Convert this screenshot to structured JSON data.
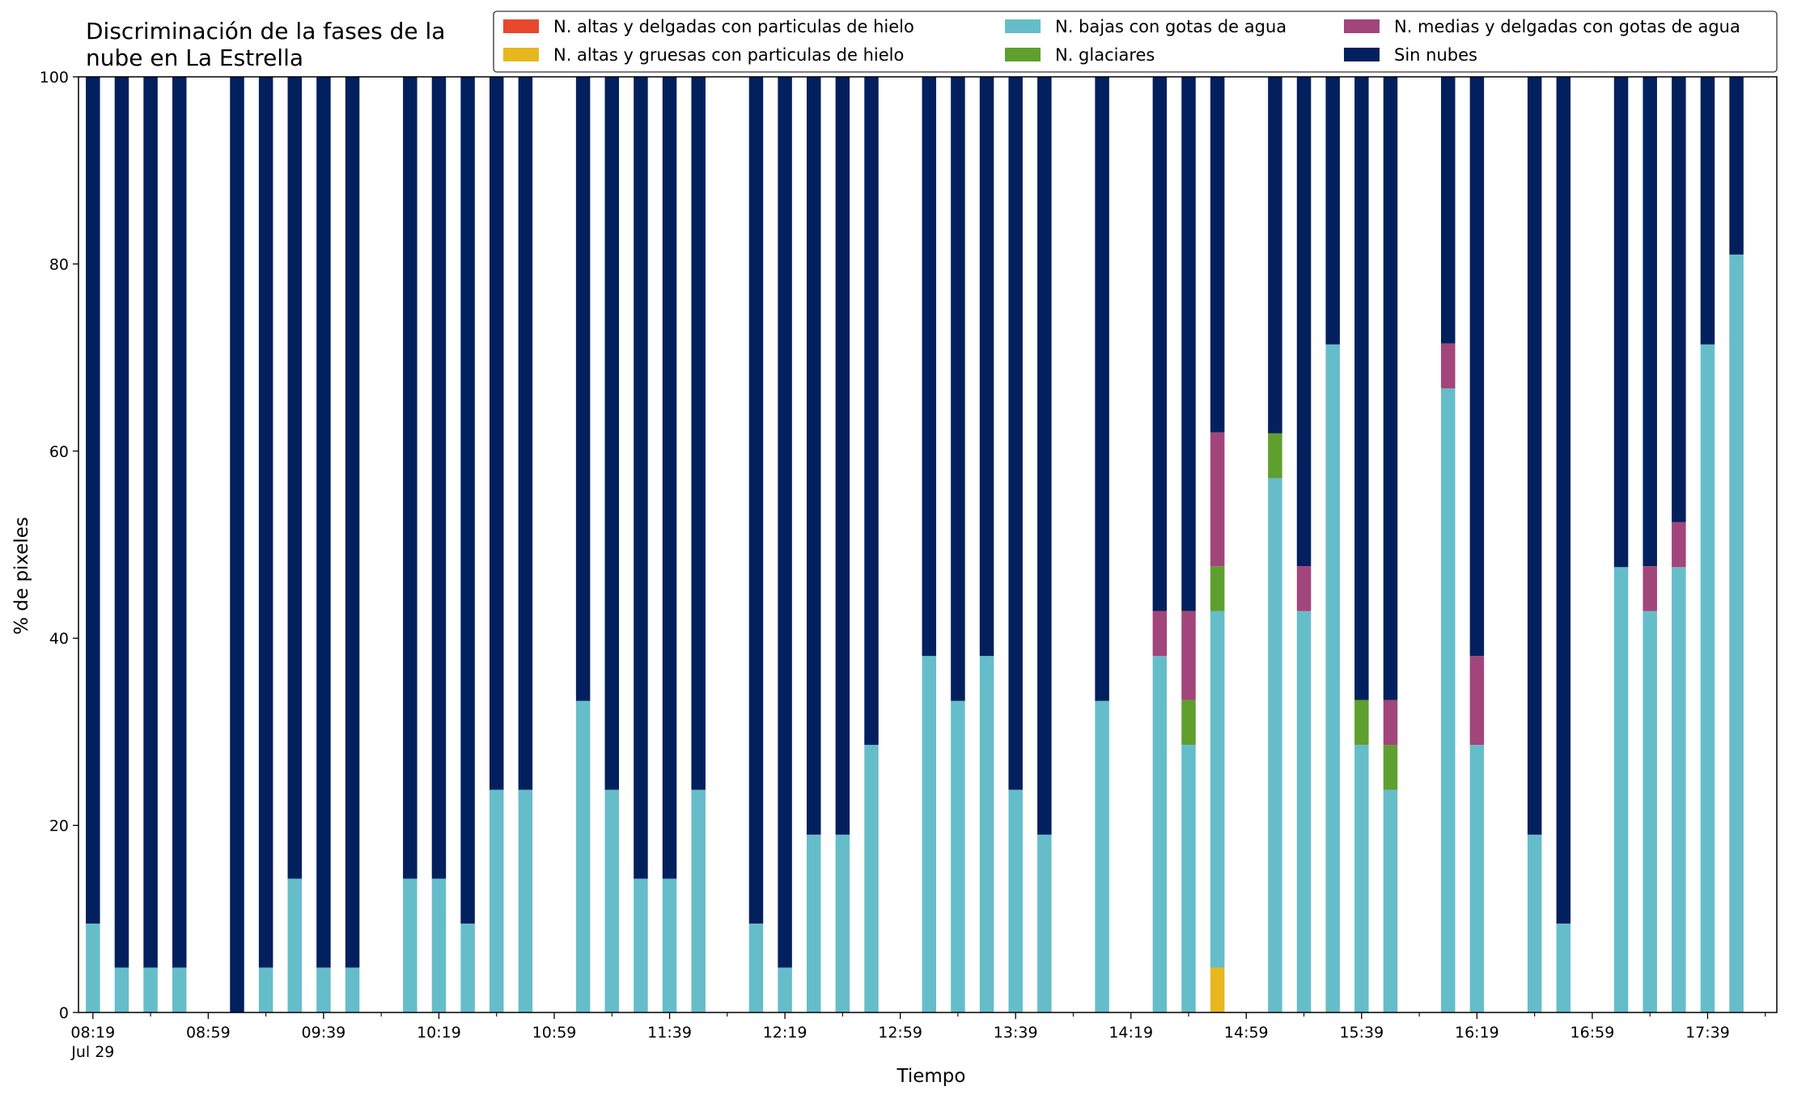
{
  "chart_data": {
    "type": "bar",
    "stacked": true,
    "title": "Discriminación de la fases de la\nnube en La Estrella",
    "xlabel": "Tiempo",
    "ylabel": "% de pixeles",
    "ylim": [
      0,
      100
    ],
    "yticks": [
      0,
      20,
      40,
      60,
      80,
      100
    ],
    "xlim_minutes_from_first_tick": [
      -5,
      584
    ],
    "x_tick_labels": [
      "08:19",
      "08:59",
      "09:39",
      "10:19",
      "10:59",
      "11:39",
      "12:19",
      "12:59",
      "13:39",
      "14:19",
      "14:59",
      "15:39",
      "16:19",
      "16:59",
      "17:39"
    ],
    "x_tick_sublabel": "Jul 29",
    "grid": false,
    "legend_position": "top-right",
    "series": [
      {
        "name": "N. altas y delgadas con particulas de hielo",
        "color": "#e8482c"
      },
      {
        "name": "N. altas y gruesas con particulas de hielo",
        "color": "#e6b81e"
      },
      {
        "name": "N. bajas con gotas de agua",
        "color": "#66bdca"
      },
      {
        "name": "N. glaciares",
        "color": "#5f9f2e"
      },
      {
        "name": "N. medias y delgadas con gotas de agua",
        "color": "#a2457a"
      },
      {
        "name": "Sin nubes",
        "color": "#03205e"
      }
    ],
    "bars": [
      {
        "t": "08:19",
        "v": [
          0,
          0,
          9.5,
          0,
          0,
          90.5
        ]
      },
      {
        "t": "08:29",
        "v": [
          0,
          0,
          4.8,
          0,
          0,
          95.2
        ]
      },
      {
        "t": "08:39",
        "v": [
          0,
          0,
          4.8,
          0,
          0,
          95.2
        ]
      },
      {
        "t": "08:49",
        "v": [
          0,
          0,
          4.8,
          0,
          0,
          95.2
        ]
      },
      {
        "t": "09:09",
        "v": [
          0,
          0,
          0,
          0,
          0,
          100
        ]
      },
      {
        "t": "09:19",
        "v": [
          0,
          0,
          4.8,
          0,
          0,
          95.2
        ]
      },
      {
        "t": "09:29",
        "v": [
          0,
          0,
          14.3,
          0,
          0,
          85.7
        ]
      },
      {
        "t": "09:39",
        "v": [
          0,
          0,
          4.8,
          0,
          0,
          95.2
        ]
      },
      {
        "t": "09:49",
        "v": [
          0,
          0,
          4.8,
          0,
          0,
          95.2
        ]
      },
      {
        "t": "10:09",
        "v": [
          0,
          0,
          14.3,
          0,
          0,
          85.7
        ]
      },
      {
        "t": "10:19",
        "v": [
          0,
          0,
          14.3,
          0,
          0,
          85.7
        ]
      },
      {
        "t": "10:29",
        "v": [
          0,
          0,
          9.5,
          0,
          0,
          90.5
        ]
      },
      {
        "t": "10:39",
        "v": [
          0,
          0,
          23.8,
          0,
          0,
          76.2
        ]
      },
      {
        "t": "10:49",
        "v": [
          0,
          0,
          23.8,
          0,
          0,
          76.2
        ]
      },
      {
        "t": "11:09",
        "v": [
          0,
          0,
          33.3,
          0,
          0,
          66.7
        ]
      },
      {
        "t": "11:19",
        "v": [
          0,
          0,
          23.8,
          0,
          0,
          76.2
        ]
      },
      {
        "t": "11:29",
        "v": [
          0,
          0,
          14.3,
          0,
          0,
          85.7
        ]
      },
      {
        "t": "11:39",
        "v": [
          0,
          0,
          14.3,
          0,
          0,
          85.7
        ]
      },
      {
        "t": "11:49",
        "v": [
          0,
          0,
          23.8,
          0,
          0,
          76.2
        ]
      },
      {
        "t": "12:09",
        "v": [
          0,
          0,
          9.5,
          0,
          0,
          90.5
        ]
      },
      {
        "t": "12:19",
        "v": [
          0,
          0,
          4.8,
          0,
          0,
          95.2
        ]
      },
      {
        "t": "12:29",
        "v": [
          0,
          0,
          19.0,
          0,
          0,
          81.0
        ]
      },
      {
        "t": "12:39",
        "v": [
          0,
          0,
          19.0,
          0,
          0,
          81.0
        ]
      },
      {
        "t": "12:49",
        "v": [
          0,
          0,
          28.6,
          0,
          0,
          71.4
        ]
      },
      {
        "t": "13:09",
        "v": [
          0,
          0,
          38.1,
          0,
          0,
          61.9
        ]
      },
      {
        "t": "13:19",
        "v": [
          0,
          0,
          33.3,
          0,
          0,
          66.7
        ]
      },
      {
        "t": "13:29",
        "v": [
          0,
          0,
          38.1,
          0,
          0,
          61.9
        ]
      },
      {
        "t": "13:39",
        "v": [
          0,
          0,
          23.8,
          0,
          0,
          76.2
        ]
      },
      {
        "t": "13:49",
        "v": [
          0,
          0,
          19.0,
          0,
          0,
          81.0
        ]
      },
      {
        "t": "14:09",
        "v": [
          0,
          0,
          33.3,
          0,
          0,
          66.7
        ]
      },
      {
        "t": "14:29",
        "v": [
          0,
          0,
          38.1,
          0,
          4.8,
          57.1
        ]
      },
      {
        "t": "14:39",
        "v": [
          0,
          0,
          28.6,
          4.8,
          9.5,
          57.1
        ]
      },
      {
        "t": "14:49",
        "v": [
          0,
          4.8,
          38.1,
          4.8,
          14.3,
          38.0
        ]
      },
      {
        "t": "15:09",
        "v": [
          0,
          0,
          57.1,
          4.8,
          0,
          38.1
        ]
      },
      {
        "t": "15:19",
        "v": [
          0,
          0,
          42.9,
          0,
          4.8,
          52.3
        ]
      },
      {
        "t": "15:29",
        "v": [
          0,
          0,
          71.4,
          0,
          0,
          28.6
        ]
      },
      {
        "t": "15:39",
        "v": [
          0,
          0,
          28.6,
          4.8,
          0,
          66.6
        ]
      },
      {
        "t": "15:49",
        "v": [
          0,
          0,
          23.8,
          4.8,
          4.8,
          66.6
        ]
      },
      {
        "t": "16:09",
        "v": [
          0,
          0,
          66.7,
          0,
          4.8,
          28.5
        ]
      },
      {
        "t": "16:19",
        "v": [
          0,
          0,
          28.6,
          0,
          9.5,
          61.9
        ]
      },
      {
        "t": "16:39",
        "v": [
          0,
          0,
          19.0,
          0,
          0,
          81.0
        ]
      },
      {
        "t": "16:49",
        "v": [
          0,
          0,
          9.5,
          0,
          0,
          90.5
        ]
      },
      {
        "t": "17:09",
        "v": [
          0,
          0,
          47.6,
          0,
          0,
          52.4
        ]
      },
      {
        "t": "17:19",
        "v": [
          0,
          0,
          42.9,
          0,
          4.8,
          52.3
        ]
      },
      {
        "t": "17:29",
        "v": [
          0,
          0,
          47.6,
          0,
          4.8,
          47.6
        ]
      },
      {
        "t": "17:39",
        "v": [
          0,
          0,
          71.4,
          0,
          0,
          28.6
        ]
      },
      {
        "t": "17:49",
        "v": [
          0,
          0,
          81.0,
          0,
          0,
          19.0
        ]
      }
    ]
  }
}
